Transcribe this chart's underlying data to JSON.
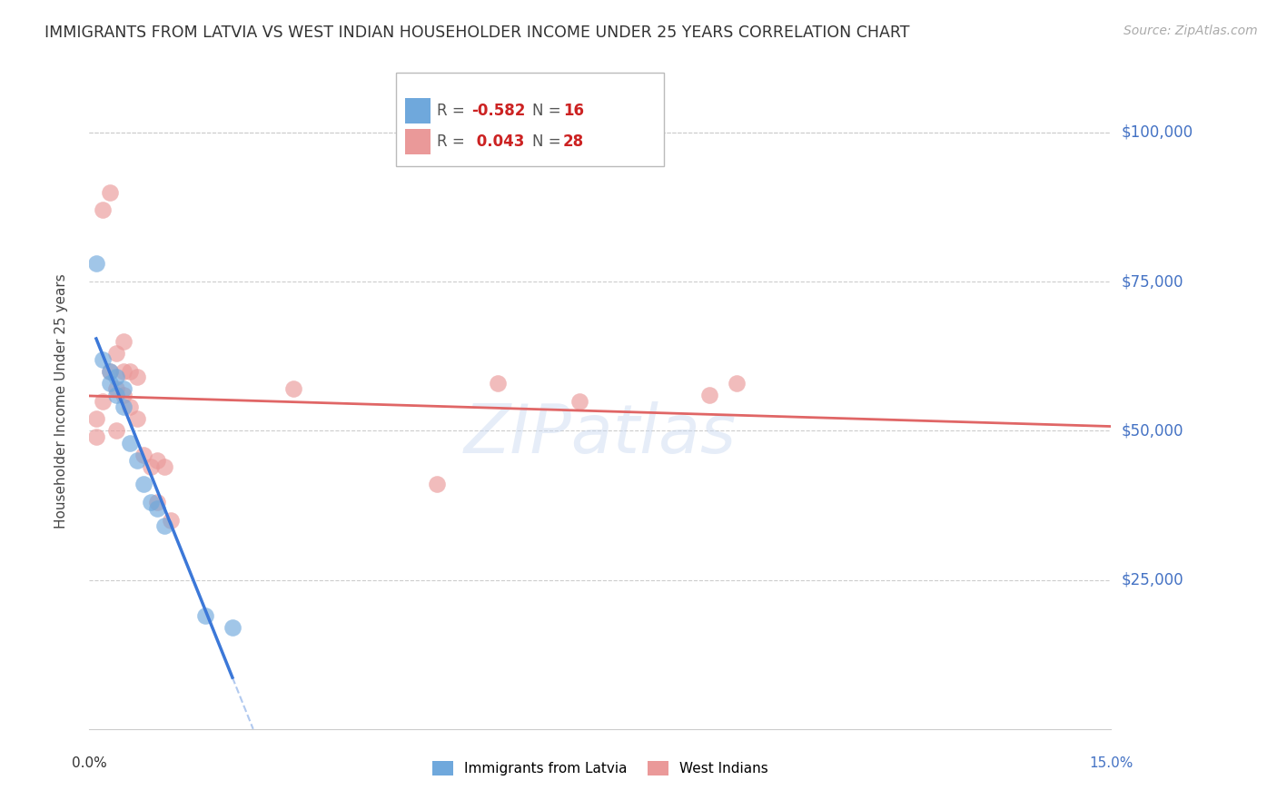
{
  "title": "IMMIGRANTS FROM LATVIA VS WEST INDIAN HOUSEHOLDER INCOME UNDER 25 YEARS CORRELATION CHART",
  "source": "Source: ZipAtlas.com",
  "ylabel": "Householder Income Under 25 years",
  "xlim": [
    0.0,
    0.15
  ],
  "ylim": [
    0,
    110000
  ],
  "legend_r_latvia": "-0.582",
  "legend_n_latvia": "16",
  "legend_r_west": "0.043",
  "legend_n_west": "28",
  "color_latvia": "#6fa8dc",
  "color_west": "#ea9999",
  "color_latvia_line": "#3c78d8",
  "color_west_line": "#e06666",
  "background": "#ffffff",
  "latvia_x": [
    0.001,
    0.002,
    0.003,
    0.003,
    0.004,
    0.004,
    0.005,
    0.005,
    0.006,
    0.007,
    0.008,
    0.009,
    0.01,
    0.011,
    0.017,
    0.021
  ],
  "latvia_y": [
    78000,
    62000,
    60000,
    58000,
    59000,
    56000,
    57000,
    54000,
    48000,
    45000,
    41000,
    38000,
    37000,
    34000,
    19000,
    17000
  ],
  "west_x": [
    0.001,
    0.001,
    0.002,
    0.002,
    0.003,
    0.003,
    0.004,
    0.004,
    0.004,
    0.005,
    0.005,
    0.005,
    0.006,
    0.006,
    0.007,
    0.007,
    0.008,
    0.009,
    0.01,
    0.01,
    0.011,
    0.012,
    0.03,
    0.051,
    0.06,
    0.072,
    0.091,
    0.095
  ],
  "west_y": [
    49000,
    52000,
    55000,
    87000,
    60000,
    90000,
    50000,
    57000,
    63000,
    60000,
    56000,
    65000,
    54000,
    60000,
    52000,
    59000,
    46000,
    44000,
    45000,
    38000,
    44000,
    35000,
    57000,
    41000,
    58000,
    55000,
    56000,
    58000
  ],
  "watermark": "ZIPatlas"
}
